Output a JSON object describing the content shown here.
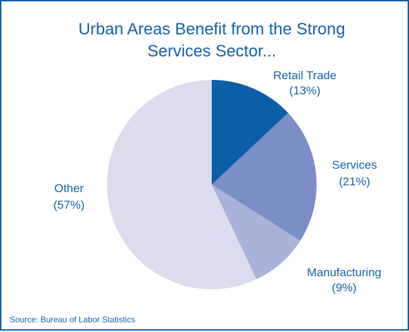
{
  "chart_data": {
    "type": "pie",
    "title_lines": [
      "Urban Areas Benefit from the Strong",
      "Services Sector..."
    ],
    "slices": [
      {
        "label": "Retail Trade",
        "value": 13,
        "value_text": "(13%)",
        "color": "#0d5ea8"
      },
      {
        "label": "Services",
        "value": 21,
        "value_text": "(21%)",
        "color": "#7b8fc6"
      },
      {
        "label": "Manufacturing",
        "value": 9,
        "value_text": "(9%)",
        "color": "#a9b3d9"
      },
      {
        "label": "Other",
        "value": 57,
        "value_text": "(57%)",
        "color": "#dcdcee"
      }
    ],
    "source": "Source: Bureau of Labor Statistics"
  }
}
